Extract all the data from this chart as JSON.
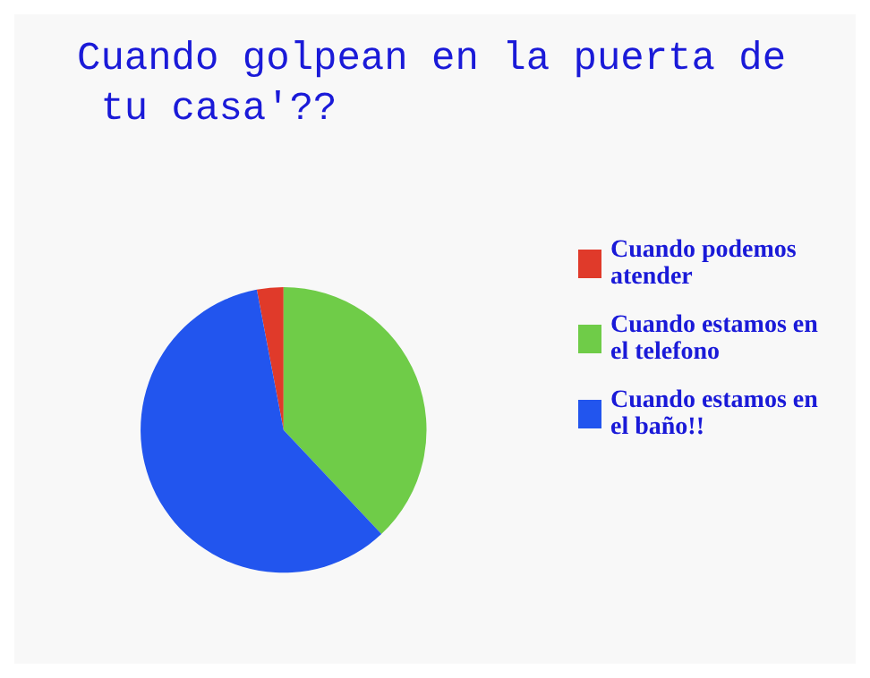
{
  "chart_data": {
    "type": "pie",
    "title": "Cuando golpean en la puerta de tu casa'??",
    "categories": [
      "Cuando podemos atender",
      "Cuando estamos en el telefono",
      "Cuando estamos en el baño!!"
    ],
    "values": [
      3,
      38,
      59
    ],
    "colors": [
      "#e03a2a",
      "#6fcc48",
      "#2255ee"
    ],
    "legend": "right"
  }
}
